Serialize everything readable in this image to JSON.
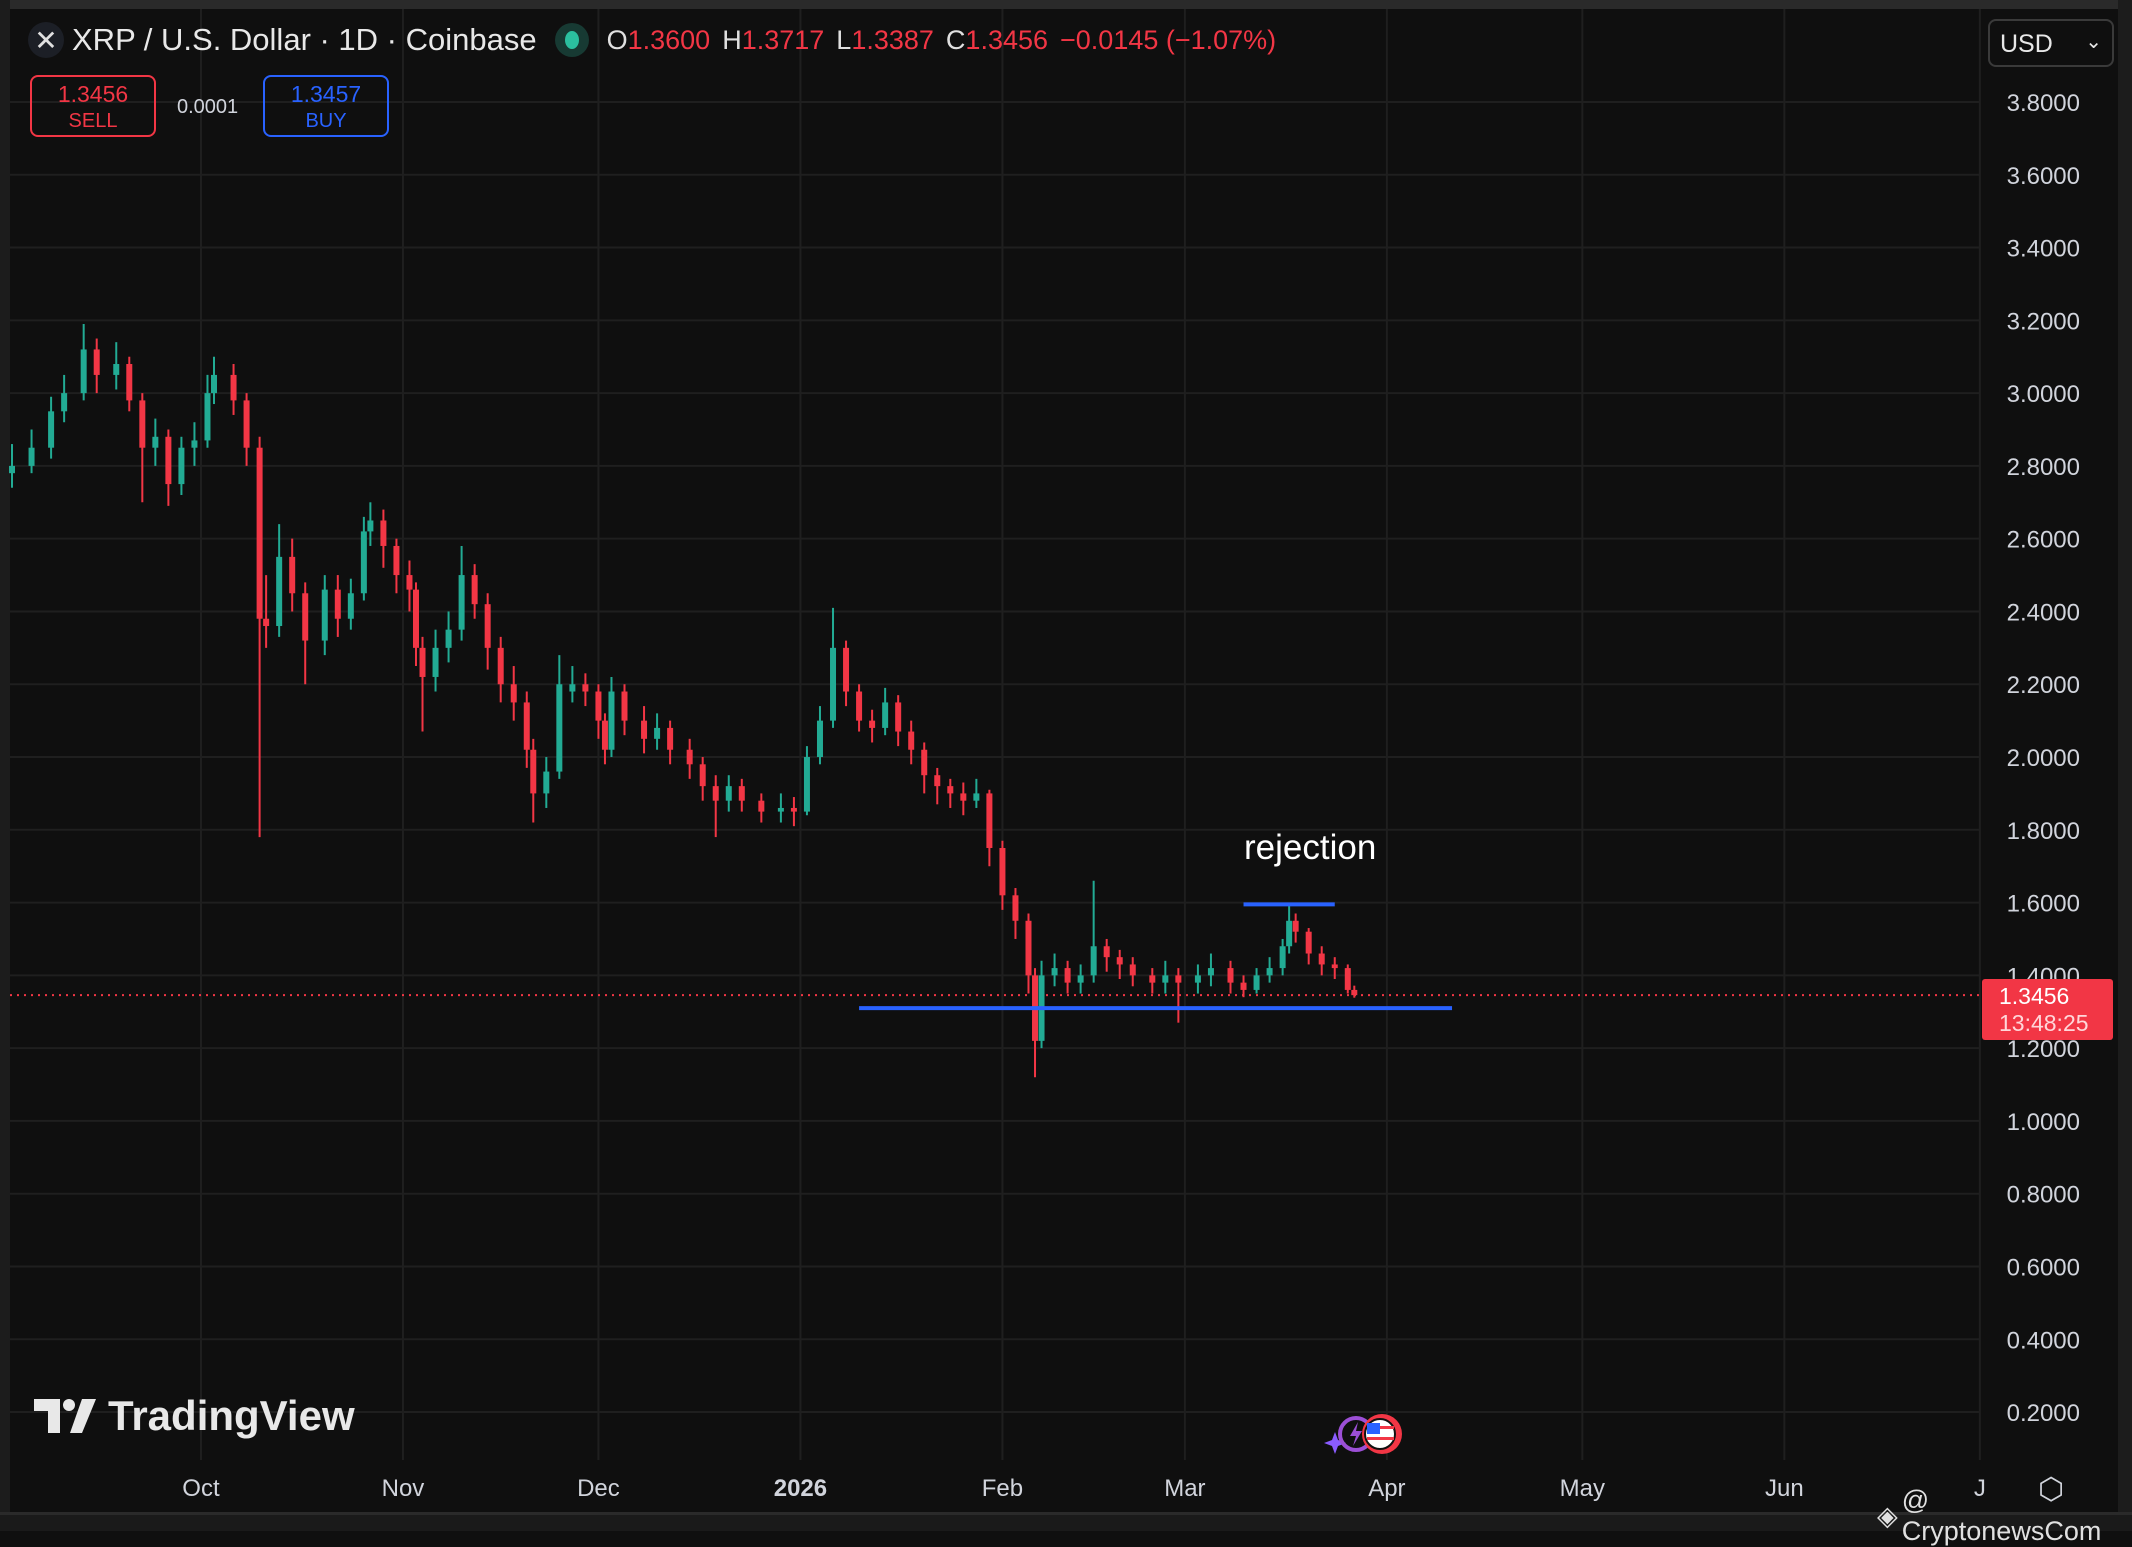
{
  "header": {
    "title": "XRP / U.S. Dollar · 1D · Coinbase",
    "ohlc": {
      "o_label": "O",
      "o": "1.3600",
      "h_label": "H",
      "h": "1.3717",
      "l_label": "L",
      "l": "1.3387",
      "c_label": "C",
      "c": "1.3456",
      "change": "−0.0145 (−1.07%)"
    },
    "sell_price": "1.3456",
    "sell_label": "SELL",
    "spread": "0.0001",
    "buy_price": "1.3457",
    "buy_label": "BUY",
    "currency": "USD"
  },
  "price_tag": {
    "price": "1.3456",
    "countdown": "13:48:25"
  },
  "annotation": {
    "text": "rejection"
  },
  "branding": {
    "logo": "TradingView",
    "watermark": "@ CryptonewsCom"
  },
  "colors": {
    "up": "#22ab94",
    "down": "#f23645",
    "line": "#2962ff",
    "grid": "#1f1f1f",
    "background": "#0f0f0f"
  },
  "chart_data": {
    "type": "candlestick",
    "title": "XRP / U.S. Dollar · 1D · Coinbase",
    "ylim": [
      0.1,
      3.9
    ],
    "y_ticks": [
      "3.8000",
      "3.6000",
      "3.4000",
      "3.2000",
      "3.0000",
      "2.8000",
      "2.6000",
      "2.4000",
      "2.2000",
      "2.0000",
      "1.8000",
      "1.6000",
      "1.4000",
      "1.2000",
      "1.0000",
      "0.8000",
      "0.6000",
      "0.4000",
      "0.2000"
    ],
    "x_ticks": [
      {
        "label": "Oct",
        "date": "2025-10-01"
      },
      {
        "label": "Nov",
        "date": "2025-11-01"
      },
      {
        "label": "Dec",
        "date": "2025-12-01"
      },
      {
        "label": "2026",
        "date": "2026-01-01",
        "bold": true
      },
      {
        "label": "Feb",
        "date": "2026-02-01"
      },
      {
        "label": "Mar",
        "date": "2026-03-01"
      },
      {
        "label": "Apr",
        "date": "2026-04-01"
      },
      {
        "label": "May",
        "date": "2026-05-01"
      },
      {
        "label": "Jun",
        "date": "2026-06-01"
      },
      {
        "label": "J",
        "date": "2026-07-01"
      }
    ],
    "grid": true,
    "last_price": 1.3456,
    "lines": [
      {
        "name": "support",
        "from": {
          "date": "2026-01-10",
          "price": 1.31
        },
        "to": {
          "date": "2026-04-11",
          "price": 1.31
        }
      },
      {
        "name": "rejection",
        "from": {
          "date": "2026-03-10",
          "price": 1.595
        },
        "to": {
          "date": "2026-03-24",
          "price": 1.595
        }
      }
    ],
    "candles": [
      [
        "2025-09-02",
        2.78,
        2.86,
        2.74,
        2.8
      ],
      [
        "2025-09-05",
        2.8,
        2.9,
        2.78,
        2.85
      ],
      [
        "2025-09-08",
        2.85,
        2.99,
        2.82,
        2.95
      ],
      [
        "2025-09-10",
        2.95,
        3.05,
        2.92,
        3.0
      ],
      [
        "2025-09-13",
        3.0,
        3.19,
        2.98,
        3.12
      ],
      [
        "2025-09-15",
        3.12,
        3.15,
        3.0,
        3.05
      ],
      [
        "2025-09-18",
        3.05,
        3.14,
        3.01,
        3.08
      ],
      [
        "2025-09-20",
        3.08,
        3.1,
        2.95,
        2.98
      ],
      [
        "2025-09-22",
        2.98,
        3.0,
        2.7,
        2.85
      ],
      [
        "2025-09-24",
        2.85,
        2.93,
        2.8,
        2.88
      ],
      [
        "2025-09-26",
        2.88,
        2.9,
        2.69,
        2.75
      ],
      [
        "2025-09-28",
        2.75,
        2.88,
        2.72,
        2.85
      ],
      [
        "2025-09-30",
        2.85,
        2.92,
        2.8,
        2.87
      ],
      [
        "2025-10-02",
        2.87,
        3.05,
        2.85,
        3.0
      ],
      [
        "2025-10-03",
        3.0,
        3.1,
        2.97,
        3.05
      ],
      [
        "2025-10-06",
        3.05,
        3.08,
        2.94,
        2.98
      ],
      [
        "2025-10-08",
        2.98,
        3.0,
        2.8,
        2.85
      ],
      [
        "2025-10-10",
        2.85,
        2.88,
        1.78,
        2.38
      ],
      [
        "2025-10-11",
        2.38,
        2.5,
        2.3,
        2.36
      ],
      [
        "2025-10-13",
        2.36,
        2.64,
        2.33,
        2.55
      ],
      [
        "2025-10-15",
        2.55,
        2.6,
        2.4,
        2.45
      ],
      [
        "2025-10-17",
        2.45,
        2.48,
        2.2,
        2.32
      ],
      [
        "2025-10-20",
        2.32,
        2.5,
        2.28,
        2.46
      ],
      [
        "2025-10-22",
        2.46,
        2.5,
        2.33,
        2.38
      ],
      [
        "2025-10-24",
        2.38,
        2.49,
        2.35,
        2.45
      ],
      [
        "2025-10-26",
        2.45,
        2.66,
        2.43,
        2.62
      ],
      [
        "2025-10-27",
        2.62,
        2.7,
        2.58,
        2.65
      ],
      [
        "2025-10-29",
        2.65,
        2.68,
        2.52,
        2.58
      ],
      [
        "2025-10-31",
        2.58,
        2.6,
        2.45,
        2.5
      ],
      [
        "2025-11-02",
        2.5,
        2.54,
        2.4,
        2.46
      ],
      [
        "2025-11-03",
        2.46,
        2.48,
        2.25,
        2.3
      ],
      [
        "2025-11-04",
        2.3,
        2.33,
        2.07,
        2.22
      ],
      [
        "2025-11-06",
        2.22,
        2.35,
        2.18,
        2.3
      ],
      [
        "2025-11-08",
        2.3,
        2.4,
        2.26,
        2.35
      ],
      [
        "2025-11-10",
        2.35,
        2.58,
        2.32,
        2.5
      ],
      [
        "2025-11-12",
        2.5,
        2.53,
        2.38,
        2.42
      ],
      [
        "2025-11-14",
        2.42,
        2.45,
        2.24,
        2.3
      ],
      [
        "2025-11-16",
        2.3,
        2.33,
        2.15,
        2.2
      ],
      [
        "2025-11-18",
        2.2,
        2.25,
        2.1,
        2.15
      ],
      [
        "2025-11-20",
        2.15,
        2.18,
        1.97,
        2.02
      ],
      [
        "2025-11-21",
        2.02,
        2.05,
        1.82,
        1.9
      ],
      [
        "2025-11-23",
        1.9,
        2.0,
        1.86,
        1.96
      ],
      [
        "2025-11-25",
        1.96,
        2.28,
        1.94,
        2.2
      ],
      [
        "2025-11-27",
        2.18,
        2.25,
        2.15,
        2.2
      ],
      [
        "2025-11-29",
        2.2,
        2.23,
        2.14,
        2.18
      ],
      [
        "2025-12-01",
        2.18,
        2.2,
        2.05,
        2.1
      ],
      [
        "2025-12-02",
        2.1,
        2.12,
        1.98,
        2.02
      ],
      [
        "2025-12-03",
        2.02,
        2.22,
        2.0,
        2.18
      ],
      [
        "2025-12-05",
        2.18,
        2.2,
        2.06,
        2.1
      ],
      [
        "2025-12-08",
        2.1,
        2.14,
        2.01,
        2.05
      ],
      [
        "2025-12-10",
        2.05,
        2.12,
        2.02,
        2.08
      ],
      [
        "2025-12-12",
        2.08,
        2.1,
        1.98,
        2.02
      ],
      [
        "2025-12-15",
        2.02,
        2.05,
        1.94,
        1.98
      ],
      [
        "2025-12-17",
        1.98,
        2.0,
        1.88,
        1.92
      ],
      [
        "2025-12-19",
        1.92,
        1.95,
        1.78,
        1.88
      ],
      [
        "2025-12-21",
        1.88,
        1.95,
        1.85,
        1.92
      ],
      [
        "2025-12-23",
        1.92,
        1.94,
        1.85,
        1.88
      ],
      [
        "2025-12-26",
        1.88,
        1.9,
        1.82,
        1.85
      ],
      [
        "2025-12-29",
        1.85,
        1.9,
        1.82,
        1.86
      ],
      [
        "2025-12-31",
        1.86,
        1.89,
        1.81,
        1.85
      ],
      [
        "2026-01-02",
        1.85,
        2.03,
        1.84,
        2.0
      ],
      [
        "2026-01-04",
        2.0,
        2.14,
        1.98,
        2.1
      ],
      [
        "2026-01-06",
        2.1,
        2.41,
        2.08,
        2.3
      ],
      [
        "2026-01-08",
        2.3,
        2.32,
        2.14,
        2.18
      ],
      [
        "2026-01-10",
        2.18,
        2.2,
        2.07,
        2.1
      ],
      [
        "2026-01-12",
        2.1,
        2.13,
        2.04,
        2.08
      ],
      [
        "2026-01-14",
        2.08,
        2.19,
        2.06,
        2.15
      ],
      [
        "2026-01-16",
        2.15,
        2.17,
        2.03,
        2.07
      ],
      [
        "2026-01-18",
        2.07,
        2.1,
        1.98,
        2.02
      ],
      [
        "2026-01-20",
        2.02,
        2.04,
        1.9,
        1.95
      ],
      [
        "2026-01-22",
        1.95,
        1.97,
        1.87,
        1.92
      ],
      [
        "2026-01-24",
        1.92,
        1.94,
        1.86,
        1.9
      ],
      [
        "2026-01-26",
        1.9,
        1.93,
        1.84,
        1.88
      ],
      [
        "2026-01-28",
        1.88,
        1.94,
        1.86,
        1.9
      ],
      [
        "2026-01-30",
        1.9,
        1.91,
        1.7,
        1.75
      ],
      [
        "2026-02-01",
        1.75,
        1.77,
        1.58,
        1.62
      ],
      [
        "2026-02-03",
        1.62,
        1.64,
        1.5,
        1.55
      ],
      [
        "2026-02-05",
        1.55,
        1.57,
        1.35,
        1.4
      ],
      [
        "2026-02-06",
        1.4,
        1.42,
        1.12,
        1.22
      ],
      [
        "2026-02-07",
        1.22,
        1.44,
        1.2,
        1.4
      ],
      [
        "2026-02-09",
        1.4,
        1.46,
        1.37,
        1.42
      ],
      [
        "2026-02-11",
        1.42,
        1.44,
        1.35,
        1.38
      ],
      [
        "2026-02-13",
        1.38,
        1.43,
        1.35,
        1.4
      ],
      [
        "2026-02-15",
        1.4,
        1.66,
        1.38,
        1.48
      ],
      [
        "2026-02-17",
        1.48,
        1.5,
        1.41,
        1.45
      ],
      [
        "2026-02-19",
        1.45,
        1.47,
        1.39,
        1.43
      ],
      [
        "2026-02-21",
        1.43,
        1.45,
        1.37,
        1.4
      ],
      [
        "2026-02-24",
        1.4,
        1.42,
        1.35,
        1.38
      ],
      [
        "2026-02-26",
        1.38,
        1.44,
        1.35,
        1.4
      ],
      [
        "2026-02-28",
        1.4,
        1.42,
        1.27,
        1.38
      ],
      [
        "2026-03-03",
        1.38,
        1.43,
        1.35,
        1.4
      ],
      [
        "2026-03-05",
        1.4,
        1.46,
        1.37,
        1.42
      ],
      [
        "2026-03-08",
        1.42,
        1.44,
        1.35,
        1.38
      ],
      [
        "2026-03-10",
        1.38,
        1.4,
        1.34,
        1.36
      ],
      [
        "2026-03-12",
        1.36,
        1.42,
        1.35,
        1.4
      ],
      [
        "2026-03-14",
        1.4,
        1.45,
        1.38,
        1.42
      ],
      [
        "2026-03-16",
        1.42,
        1.5,
        1.4,
        1.48
      ],
      [
        "2026-03-17",
        1.48,
        1.6,
        1.46,
        1.55
      ],
      [
        "2026-03-18",
        1.55,
        1.57,
        1.49,
        1.52
      ],
      [
        "2026-03-20",
        1.52,
        1.53,
        1.43,
        1.46
      ],
      [
        "2026-03-22",
        1.46,
        1.48,
        1.4,
        1.43
      ],
      [
        "2026-03-24",
        1.43,
        1.45,
        1.39,
        1.42
      ],
      [
        "2026-03-26",
        1.42,
        1.43,
        1.35,
        1.36
      ],
      [
        "2026-03-27",
        1.36,
        1.3717,
        1.3387,
        1.3456
      ]
    ]
  }
}
